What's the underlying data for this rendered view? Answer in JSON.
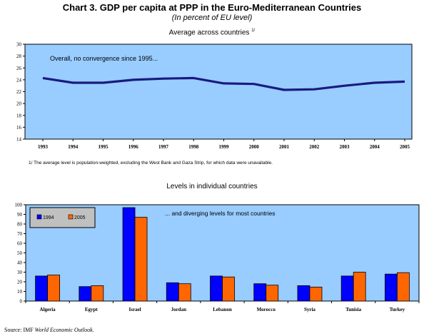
{
  "title": "Chart 3. GDP per capita at PPP in the Euro-Mediterranean Countries",
  "subtitle": "(In percent of EU level)",
  "source_prefix": "Source: IMF ",
  "source_italic": "World Economic Outlook",
  "source_suffix": ".",
  "chart_data": [
    {
      "type": "line",
      "title": "Average across countries",
      "title_note": "1/",
      "annotation": "Overall, no convergence since 1995...",
      "footnote": "1/ The average level is population-weighted, excluding the West Bank and Gaza Strip, for which data were unavailable.",
      "x": [
        "1993",
        "1994",
        "1995",
        "1996",
        "1997",
        "1998",
        "1999",
        "2000",
        "2001",
        "2002",
        "2003",
        "2004",
        "2005"
      ],
      "values": [
        24.3,
        23.5,
        23.5,
        24.0,
        24.2,
        24.3,
        23.4,
        23.3,
        22.3,
        22.4,
        23.0,
        23.5,
        23.7
      ],
      "ylim": [
        14,
        30
      ],
      "yticks": [
        14,
        16,
        18,
        20,
        22,
        24,
        26,
        28,
        30
      ],
      "grid": false,
      "colors": {
        "background": "#99ccff",
        "line": "#1a1a80"
      }
    },
    {
      "type": "bar",
      "title": "Levels in individual countries",
      "annotation": "... and diverging levels for most countries",
      "categories": [
        "Algeria",
        "Egypt",
        "Israel",
        "Jordan",
        "Lebanon",
        "Morocco",
        "Syria",
        "Tunisia",
        "Turkey"
      ],
      "series": [
        {
          "name": "1994",
          "values": [
            26,
            15,
            97,
            19,
            26,
            18,
            16,
            26,
            28
          ],
          "color": "#0000ff"
        },
        {
          "name": "2005",
          "values": [
            27,
            16,
            87,
            18,
            25,
            16.5,
            14.5,
            30,
            29.5
          ],
          "color": "#ff6600"
        }
      ],
      "ylim": [
        0,
        100
      ],
      "yticks": [
        0,
        10,
        20,
        30,
        40,
        50,
        60,
        70,
        80,
        90,
        100
      ],
      "legend_position": "top-left",
      "grid": false,
      "colors": {
        "background": "#99ccff"
      }
    }
  ]
}
